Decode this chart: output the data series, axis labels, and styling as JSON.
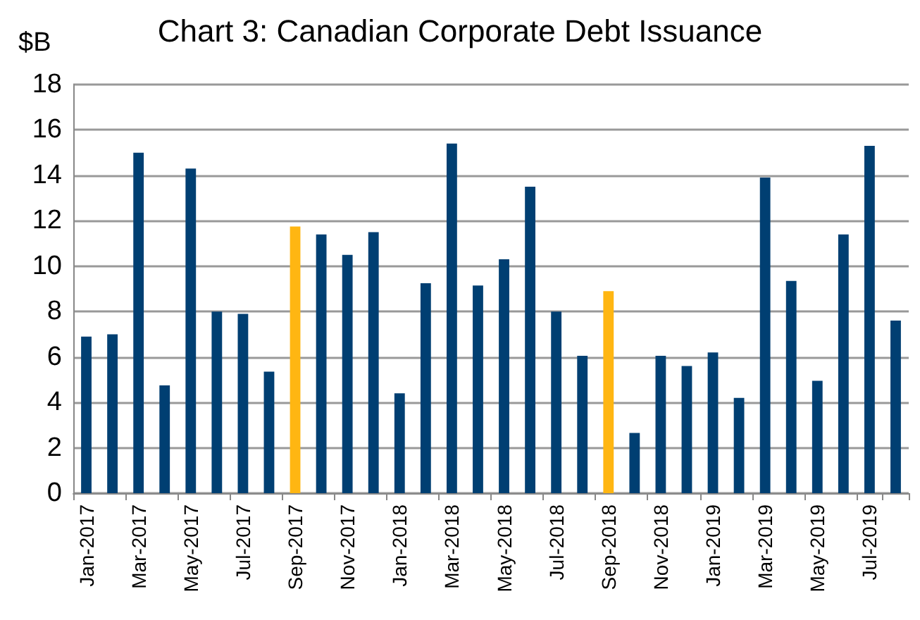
{
  "chart_data": {
    "type": "bar",
    "title": "Chart 3: Canadian Corporate Debt Issuance",
    "ylabel": "$B",
    "categories": [
      "Jan-2017",
      null,
      "Mar-2017",
      null,
      "May-2017",
      null,
      "Jul-2017",
      null,
      "Sep-2017",
      null,
      "Nov-2017",
      null,
      "Jan-2018",
      null,
      "Mar-2018",
      null,
      "May-2018",
      null,
      "Jul-2018",
      null,
      "Sep-2018",
      null,
      "Nov-2018",
      null,
      "Jan-2019",
      null,
      "Mar-2019",
      null,
      "May-2019",
      null,
      "Jul-2019",
      null
    ],
    "values": [
      6.9,
      7.0,
      15.0,
      4.75,
      14.3,
      8.0,
      7.9,
      5.35,
      11.75,
      11.4,
      10.5,
      11.5,
      4.4,
      9.25,
      15.4,
      9.15,
      10.3,
      13.5,
      8.0,
      6.05,
      8.9,
      2.65,
      6.05,
      5.6,
      6.2,
      4.2,
      13.9,
      9.35,
      4.95,
      11.4,
      15.3,
      7.6
    ],
    "colors": [
      "#003f72",
      "#003f72",
      "#003f72",
      "#003f72",
      "#003f72",
      "#003f72",
      "#003f72",
      "#003f72",
      "#ffb612",
      "#003f72",
      "#003f72",
      "#003f72",
      "#003f72",
      "#003f72",
      "#003f72",
      "#003f72",
      "#003f72",
      "#003f72",
      "#003f72",
      "#003f72",
      "#ffb612",
      "#003f72",
      "#003f72",
      "#003f72",
      "#003f72",
      "#003f72",
      "#003f72",
      "#003f72",
      "#003f72",
      "#003f72",
      "#003f72",
      "#003f72"
    ],
    "ylim": [
      0,
      18
    ],
    "yticks": [
      0,
      2,
      4,
      6,
      8,
      10,
      12,
      14,
      16,
      18
    ],
    "grid": "y"
  }
}
